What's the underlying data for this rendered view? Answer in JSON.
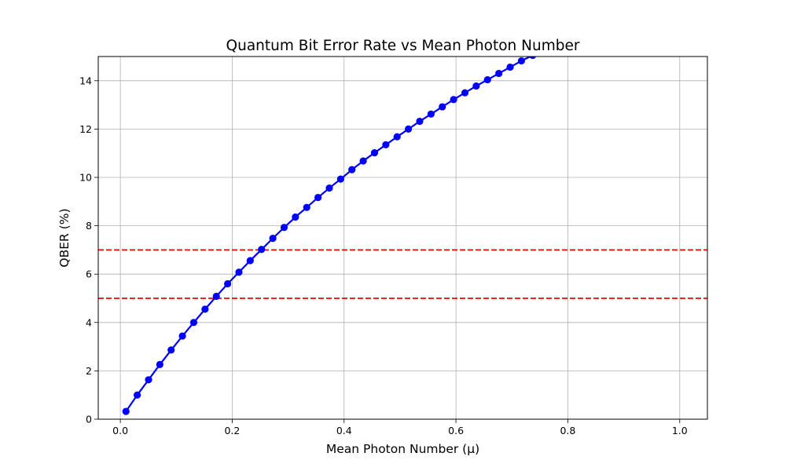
{
  "chart_data": {
    "type": "line",
    "title": "Quantum Bit Error Rate vs Mean Photon Number",
    "xlabel": "Mean Photon Number (μ)",
    "ylabel": "QBER (%)",
    "xlim": [
      -0.0395,
      1.0495
    ],
    "ylim": [
      0,
      15
    ],
    "xticks": [
      0.0,
      0.2,
      0.4,
      0.6,
      0.8,
      1.0
    ],
    "xtick_labels": [
      "0.0",
      "0.2",
      "0.4",
      "0.6",
      "0.8",
      "1.0"
    ],
    "yticks": [
      0,
      2,
      4,
      6,
      8,
      10,
      12,
      14
    ],
    "ytick_labels": [
      "0",
      "2",
      "4",
      "6",
      "8",
      "10",
      "12",
      "14"
    ],
    "grid": true,
    "series": [
      {
        "color": "#0000ff",
        "marker": "circle",
        "x": [
          0.01,
          0.0302,
          0.0504,
          0.0706,
          0.0908,
          0.111,
          0.1312,
          0.1514,
          0.1716,
          0.1918,
          0.212,
          0.2322,
          0.2524,
          0.2726,
          0.2928,
          0.313,
          0.3332,
          0.3534,
          0.3736,
          0.3938,
          0.414,
          0.4342,
          0.4544,
          0.4746,
          0.4948,
          0.515,
          0.5352,
          0.5554,
          0.5756,
          0.5958,
          0.616,
          0.6362,
          0.6564,
          0.6766,
          0.6968,
          0.717,
          0.7372
        ],
        "y": [
          0.32,
          1.0,
          1.63,
          2.26,
          2.86,
          3.44,
          4.0,
          4.55,
          5.08,
          5.6,
          6.08,
          6.56,
          7.02,
          7.48,
          7.93,
          8.36,
          8.76,
          9.17,
          9.56,
          9.93,
          10.32,
          10.68,
          11.02,
          11.35,
          11.68,
          12.0,
          12.32,
          12.62,
          12.92,
          13.22,
          13.5,
          13.78,
          14.04,
          14.3,
          14.56,
          14.82,
          15.05
        ]
      }
    ],
    "hlines": [
      {
        "y": 7,
        "color": "#ff0000",
        "style": "dashed"
      },
      {
        "y": 5,
        "color": "#ff0000",
        "style": "dashed"
      }
    ]
  }
}
